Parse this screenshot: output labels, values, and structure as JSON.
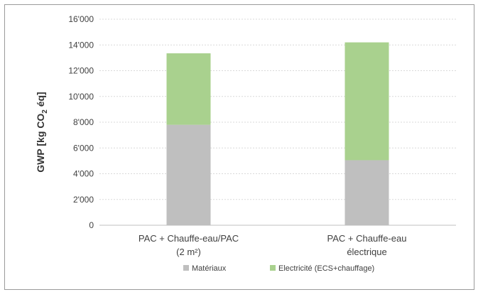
{
  "chart_data": {
    "type": "bar",
    "stacked": true,
    "categories": [
      [
        "PAC + Chauffe-eau/PAC",
        "(2 m²)"
      ],
      [
        "PAC + Chauffe-eau",
        "électrique"
      ]
    ],
    "series": [
      {
        "name": "Matériaux",
        "color": "#bfbfbf",
        "values": [
          7800,
          5050
        ]
      },
      {
        "name": "Electricité (ECS+chauffage)",
        "color": "#a9d18e",
        "values": [
          5550,
          9150
        ]
      }
    ],
    "ylabel": {
      "main": "GWP [kg CO",
      "sub": "2",
      "tail": " éq]"
    },
    "ylim": [
      0,
      16000
    ],
    "yticks": [
      0,
      2000,
      4000,
      6000,
      8000,
      10000,
      12000,
      14000,
      16000
    ],
    "ytick_labels": [
      "0",
      "2'000",
      "4'000",
      "6'000",
      "8'000",
      "10'000",
      "12'000",
      "14'000",
      "16'000"
    ],
    "grid": true,
    "legend_position": "bottom"
  }
}
